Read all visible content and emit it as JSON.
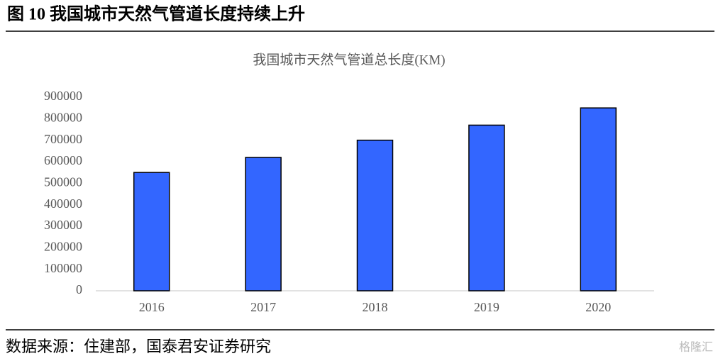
{
  "header": {
    "title": "图 10 我国城市天然气管道长度持续上升"
  },
  "chart_data": {
    "type": "bar",
    "title": "我国城市天然气管道总长度(KM)",
    "categories": [
      "2016",
      "2017",
      "2018",
      "2019",
      "2020"
    ],
    "values": [
      550000,
      620000,
      700000,
      770000,
      850000
    ],
    "color": "#3366ff",
    "ylim": [
      0,
      900000
    ],
    "yticks": [
      0,
      100000,
      200000,
      300000,
      400000,
      500000,
      600000,
      700000,
      800000,
      900000
    ],
    "grid": false
  },
  "footer": {
    "source": "数据来源：住建部，国泰君安证券研究",
    "watermark": "格隆汇"
  }
}
